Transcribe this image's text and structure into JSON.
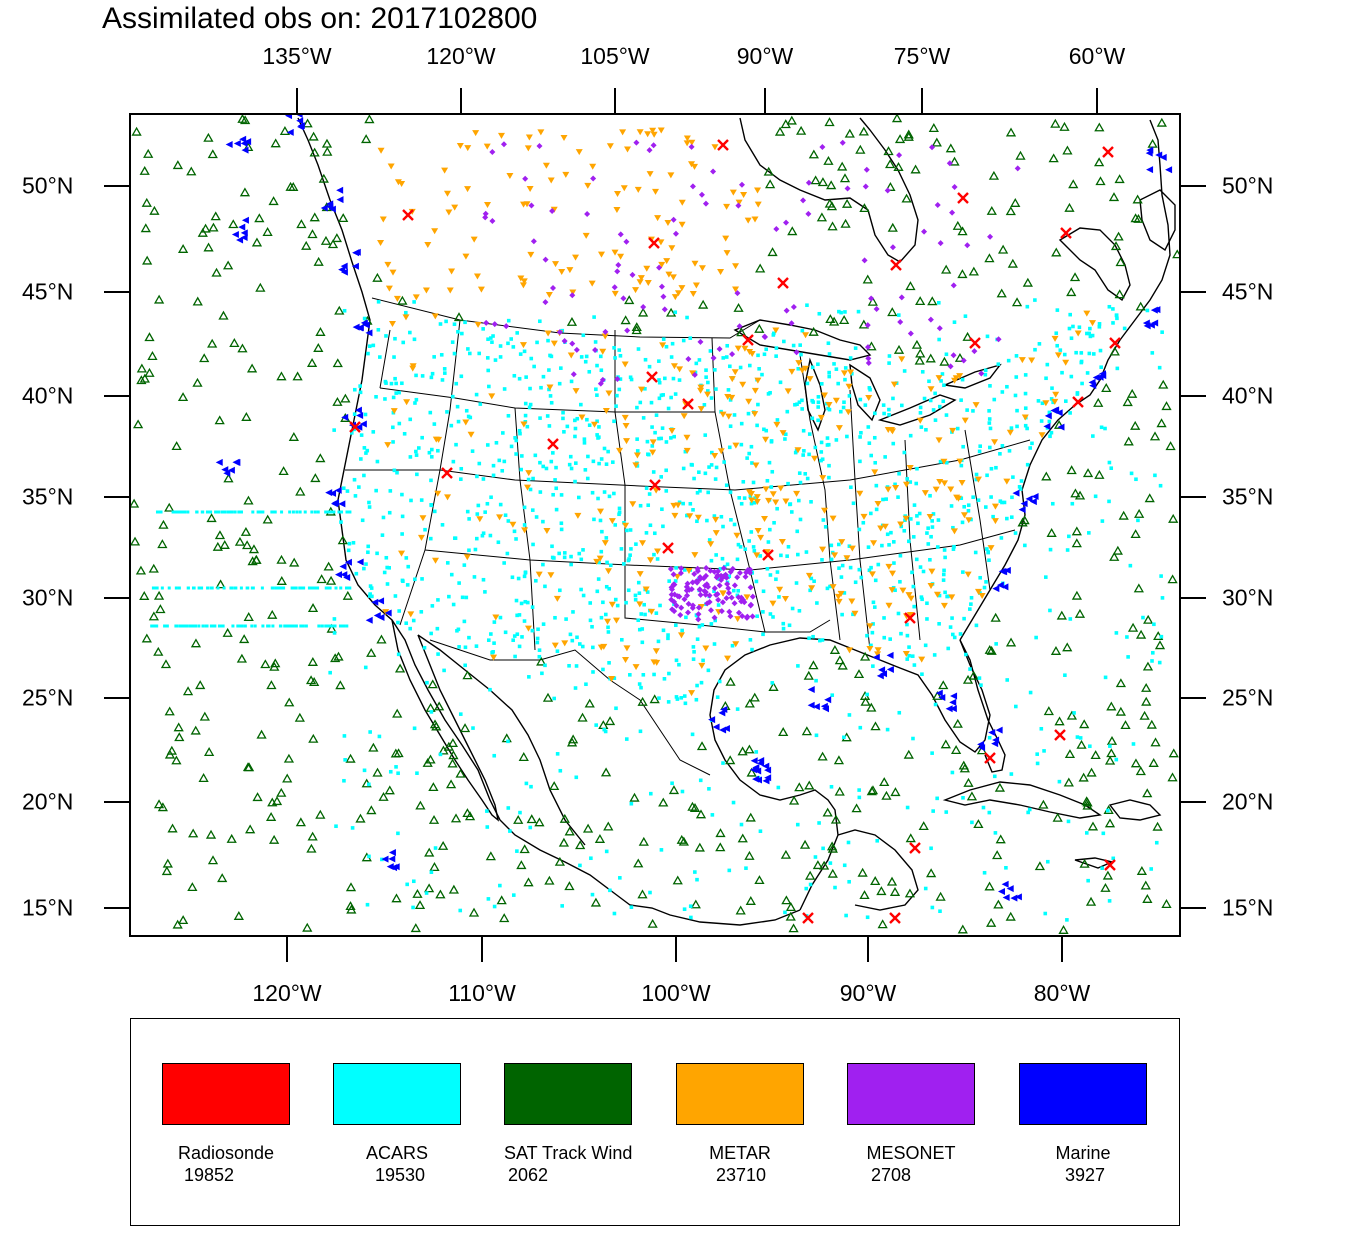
{
  "title": "Assimilated obs on: 2017102800",
  "top_longitudes": [
    "135°W",
    "120°W",
    "105°W",
    "90°W",
    "75°W",
    "60°W"
  ],
  "bottom_longitudes": [
    "120°W",
    "110°W",
    "100°W",
    "90°W",
    "80°W"
  ],
  "latitudes": [
    "50°N",
    "45°N",
    "40°N",
    "35°N",
    "30°N",
    "25°N",
    "20°N",
    "15°N"
  ],
  "legend": [
    {
      "name": "Radiosonde",
      "count": "19852",
      "color": "#ff0000"
    },
    {
      "name": "ACARS",
      "count": "19530",
      "color": "#00ffff"
    },
    {
      "name": "SAT Track Wind",
      "count": "2062",
      "color": "#006400"
    },
    {
      "name": "METAR",
      "count": "23710",
      "color": "#ffa500"
    },
    {
      "name": "MESONET",
      "count": "2708",
      "color": "#a020f0"
    },
    {
      "name": "Marine",
      "count": "3927",
      "color": "#0000ff"
    }
  ],
  "observation_symbols": {
    "Radiosonde": "x-mark",
    "ACARS": "square-dot",
    "SAT Track Wind": "open-triangle",
    "METAR": "down-triangle",
    "MESONET": "diamond",
    "Marine": "left-triangle"
  }
}
